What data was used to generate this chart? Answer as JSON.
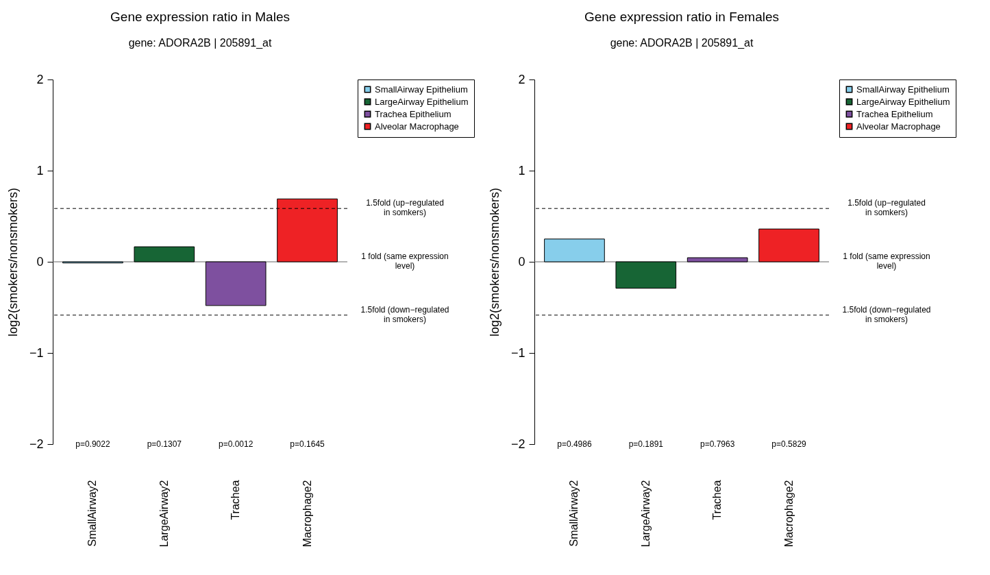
{
  "chart_data": [
    {
      "type": "bar",
      "title": "Gene expression ratio in Males",
      "subtitle": "gene: ADORA2B | 205891_at",
      "ylabel": "log2(smokers/nonsmokers)",
      "categories": [
        "SmallAirway2",
        "LargeAirway2",
        "Trachea",
        "Macrophage2"
      ],
      "series": [
        {
          "name": "SmallAirway Epithelium",
          "color": "#87ceeb",
          "values": [
            -0.013,
            null,
            null,
            null
          ]
        },
        {
          "name": "LargeAirway Epithelium",
          "color": "#176535",
          "values": [
            null,
            0.165,
            null,
            null
          ]
        },
        {
          "name": "Trachea Epithelium",
          "color": "#7e509f",
          "values": [
            null,
            null,
            -0.48,
            null
          ]
        },
        {
          "name": "Alveolar Macrophage",
          "color": "#ee2225",
          "values": [
            null,
            null,
            null,
            0.69
          ]
        }
      ],
      "ylim": [
        -2,
        2
      ],
      "yticks": [
        -2,
        -1,
        0,
        1,
        2
      ],
      "legend": "top right",
      "ref_lines": [
        {
          "axis": "y",
          "value": 0.585,
          "label": "1.5fold (up−regulated\nin somkers)",
          "line_style": "dashed",
          "color": "#000000"
        },
        {
          "axis": "y",
          "value": 0,
          "label": "1 fold (same expression\nlevel)",
          "line_style": "solid",
          "color": "#666666"
        },
        {
          "axis": "y",
          "value": -0.585,
          "label": "1.5fold (down−regulated\nin smokers)",
          "line_style": "dashed",
          "color": "#000000"
        }
      ],
      "annotations": [
        "p=0.9022",
        "p=0.1307",
        "p=0.0012",
        "p=0.1645"
      ]
    },
    {
      "type": "bar",
      "title": "Gene expression ratio in Females",
      "subtitle": "gene: ADORA2B | 205891_at",
      "ylabel": "log2(smokers/nonsmokers)",
      "categories": [
        "SmallAirway2",
        "LargeAirway2",
        "Trachea",
        "Macrophage2"
      ],
      "series": [
        {
          "name": "SmallAirway Epithelium",
          "color": "#87ceeb",
          "values": [
            0.25,
            null,
            null,
            null
          ]
        },
        {
          "name": "LargeAirway Epithelium",
          "color": "#176535",
          "values": [
            null,
            -0.29,
            null,
            null
          ]
        },
        {
          "name": "Trachea Epithelium",
          "color": "#7e509f",
          "values": [
            null,
            null,
            0.045,
            null
          ]
        },
        {
          "name": "Alveolar Macrophage",
          "color": "#ee2225",
          "values": [
            null,
            null,
            null,
            0.36
          ]
        }
      ],
      "ylim": [
        -2,
        2
      ],
      "yticks": [
        -2,
        -1,
        0,
        1,
        2
      ],
      "legend": "top right",
      "ref_lines": [
        {
          "axis": "y",
          "value": 0.585,
          "label": "1.5fold (up−regulated\nin somkers)",
          "line_style": "dashed",
          "color": "#000000"
        },
        {
          "axis": "y",
          "value": 0,
          "label": "1 fold (same expression\nlevel)",
          "line_style": "solid",
          "color": "#666666"
        },
        {
          "axis": "y",
          "value": -0.585,
          "label": "1.5fold (down−regulated\nin smokers)",
          "line_style": "dashed",
          "color": "#000000"
        }
      ],
      "annotations": [
        "p=0.4986",
        "p=0.1891",
        "p=0.7963",
        "p=0.5829"
      ]
    }
  ]
}
